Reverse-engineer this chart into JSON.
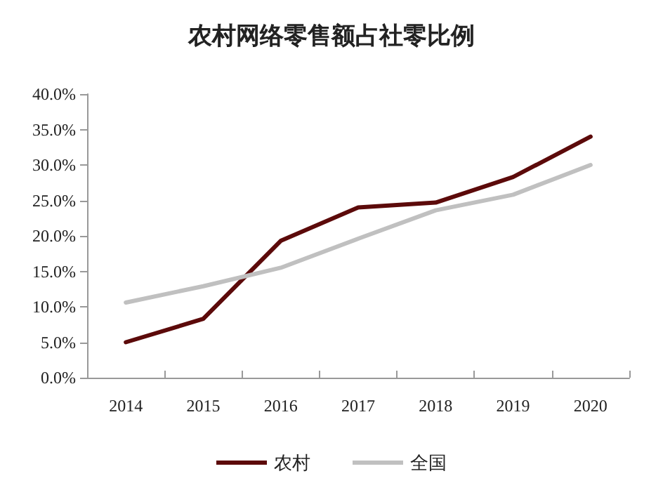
{
  "chart_data": {
    "type": "line",
    "title": "农村网络零售额占社零比例",
    "categories": [
      "2014",
      "2015",
      "2016",
      "2017",
      "2018",
      "2019",
      "2020"
    ],
    "series": [
      {
        "name": "农村",
        "color": "#5c0a0a",
        "values": [
          5.0,
          8.3,
          19.3,
          24.0,
          24.7,
          28.3,
          34.0
        ]
      },
      {
        "name": "全国",
        "color": "#c0c0c0",
        "values": [
          10.6,
          12.9,
          15.5,
          19.6,
          23.6,
          25.8,
          30.0
        ]
      }
    ],
    "ylim": [
      0,
      40
    ],
    "yticks": [
      {
        "value": 0,
        "label": "0.0%"
      },
      {
        "value": 5,
        "label": "5.0%"
      },
      {
        "value": 10,
        "label": "10.0%"
      },
      {
        "value": 15,
        "label": "15.0%"
      },
      {
        "value": 20,
        "label": "20.0%"
      },
      {
        "value": 25,
        "label": "25.0%"
      },
      {
        "value": 30,
        "label": "30.0%"
      },
      {
        "value": 35,
        "label": "35.0%"
      },
      {
        "value": 40,
        "label": "40.0%"
      }
    ],
    "grid": false,
    "legend": "bottom",
    "marker": "none",
    "line_style": "solid"
  }
}
